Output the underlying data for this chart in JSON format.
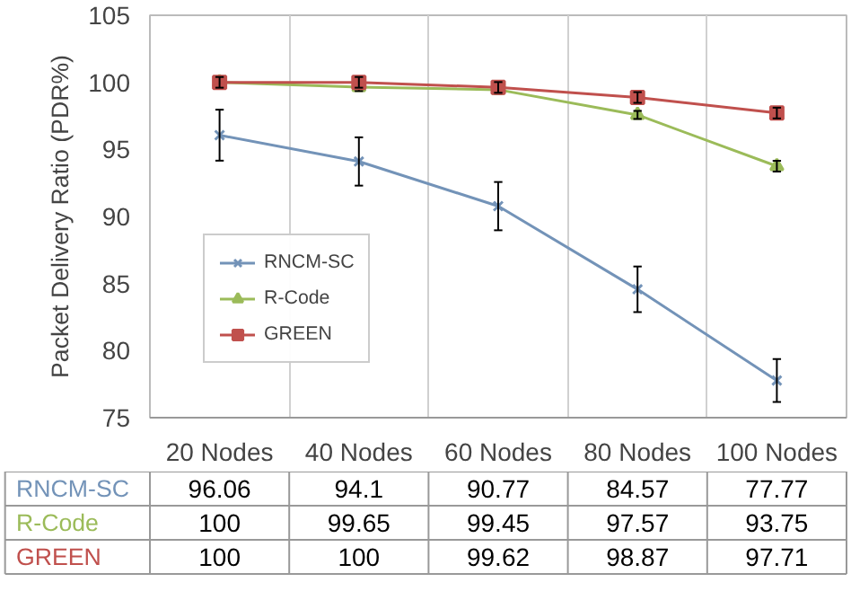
{
  "chart_data": {
    "type": "line",
    "ylabel": "Packet Delivery Ratio (PDR%)",
    "categories": [
      "20 Nodes",
      "40 Nodes",
      "60 Nodes",
      "80 Nodes",
      "100 Nodes"
    ],
    "series": [
      {
        "name": "RNCM-SC",
        "color": "#7393b8",
        "marker": "cross",
        "values": [
          96.06,
          94.1,
          90.77,
          84.57,
          77.77
        ],
        "errors": [
          1.9,
          1.8,
          1.8,
          1.7,
          1.6
        ]
      },
      {
        "name": "R-Code",
        "color": "#9bbb59",
        "marker": "triangle",
        "values": [
          100,
          99.65,
          99.45,
          97.57,
          93.75
        ],
        "errors": [
          null,
          0.3,
          0.3,
          0.3,
          0.4
        ]
      },
      {
        "name": "GREEN",
        "color": "#c0504d",
        "marker": "square",
        "values": [
          100,
          100,
          99.62,
          98.87,
          97.71
        ],
        "errors": [
          0.4,
          0.4,
          0.4,
          0.4,
          0.4
        ]
      }
    ],
    "ylim": [
      75,
      105
    ],
    "yticks": [
      75,
      80,
      85,
      90,
      95,
      100,
      105
    ],
    "grid": "x",
    "legend": "left",
    "data_labels": true,
    "line_style": "solid"
  }
}
